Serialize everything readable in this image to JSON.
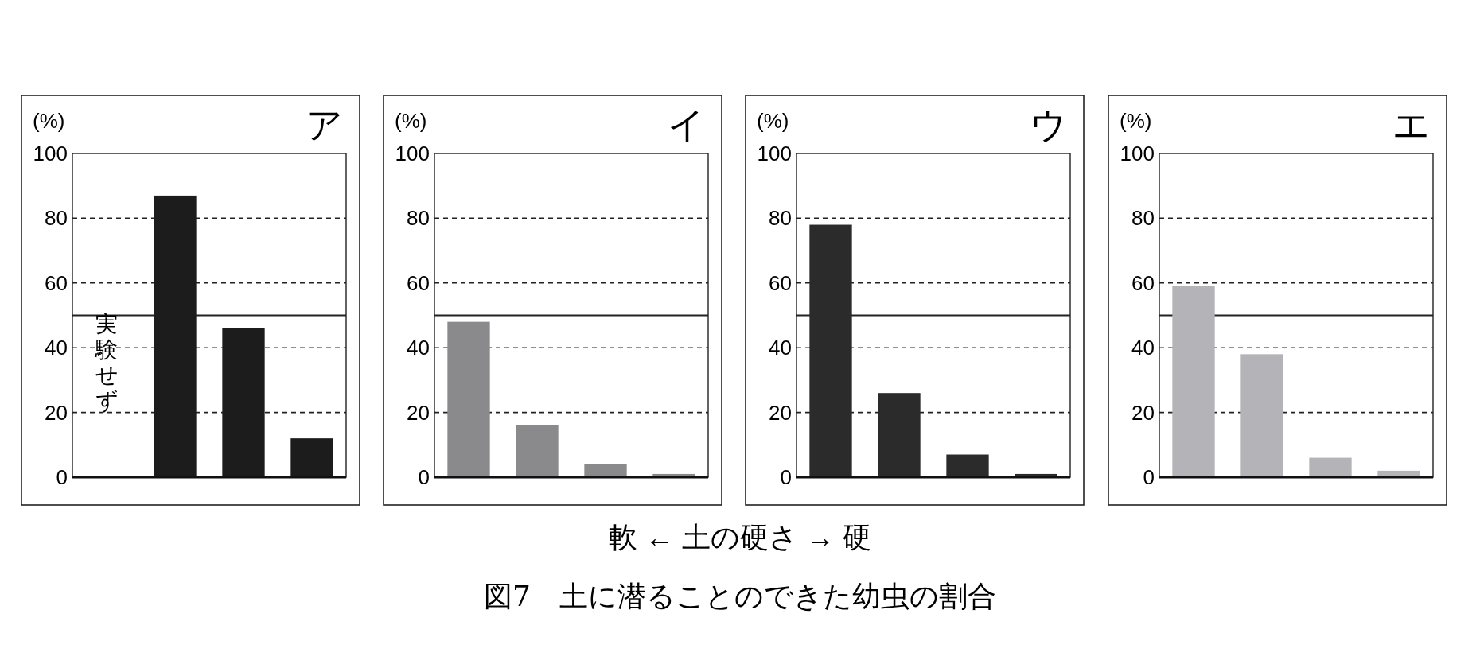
{
  "chart_data": [
    {
      "type": "bar",
      "title": "ア",
      "ylabel": "(%)",
      "categories": [
        null,
        null,
        null,
        null
      ],
      "values": [
        null,
        87,
        46,
        12
      ],
      "color": "#1c1c1c",
      "ylim": [
        0,
        100
      ],
      "yticks": [
        0,
        20,
        40,
        60,
        80,
        100
      ],
      "grid": "y",
      "line_style": "dashed",
      "ref_lines": [
        {
          "axis": "y",
          "value": 50
        }
      ],
      "annotations": [
        "実験せず"
      ]
    },
    {
      "type": "bar",
      "title": "イ",
      "ylabel": "(%)",
      "categories": [
        null,
        null,
        null,
        null
      ],
      "values": [
        48,
        16,
        4,
        1
      ],
      "color": "#8a8a8c",
      "ylim": [
        0,
        100
      ],
      "yticks": [
        0,
        20,
        40,
        60,
        80,
        100
      ],
      "grid": "y",
      "line_style": "dashed",
      "ref_lines": [
        {
          "axis": "y",
          "value": 50
        }
      ]
    },
    {
      "type": "bar",
      "title": "ウ",
      "ylabel": "(%)",
      "categories": [
        null,
        null,
        null,
        null
      ],
      "values": [
        78,
        26,
        7,
        1
      ],
      "color": "#2b2b2b",
      "ylim": [
        0,
        100
      ],
      "yticks": [
        0,
        20,
        40,
        60,
        80,
        100
      ],
      "grid": "y",
      "line_style": "dashed",
      "ref_lines": [
        {
          "axis": "y",
          "value": 50
        }
      ]
    },
    {
      "type": "bar",
      "title": "エ",
      "ylabel": "(%)",
      "categories": [
        null,
        null,
        null,
        null
      ],
      "values": [
        59,
        38,
        6,
        2
      ],
      "color": "#b4b4b8",
      "ylim": [
        0,
        100
      ],
      "yticks": [
        0,
        20,
        40,
        60,
        80,
        100
      ],
      "grid": "y",
      "line_style": "dashed",
      "ref_lines": [
        {
          "axis": "y",
          "value": 50
        }
      ]
    },
    {
      "type": "other",
      "xlabel": "軟 ← 土の硬さ → 硬",
      "annotations": [
        "図7　土に潜ることのできた幼虫の割合"
      ]
    }
  ]
}
